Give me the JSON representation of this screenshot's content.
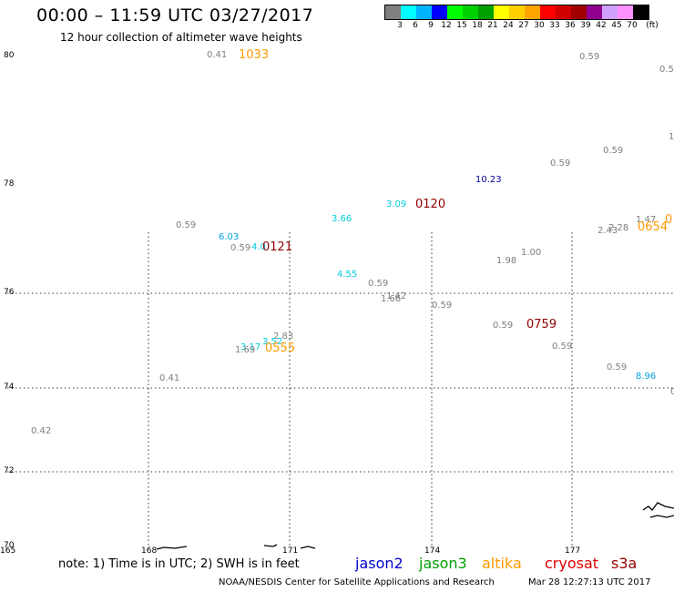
{
  "header": {
    "title": "00:00 – 11:59 UTC 03/27/2017",
    "subtitle": "12 hour collection of altimeter wave heights"
  },
  "colorbar": {
    "colors": [
      "#7f7f7f",
      "#00ffff",
      "#00b2ff",
      "#0000ff",
      "#00ff00",
      "#00d000",
      "#00a000",
      "#ffff00",
      "#ffd000",
      "#ffa500",
      "#ff0000",
      "#d00000",
      "#a00000",
      "#900090",
      "#d0a0ff",
      "#ff90ff",
      "#000000"
    ],
    "labels": [
      "3",
      "6",
      "9",
      "12",
      "15",
      "18",
      "21",
      "24",
      "27",
      "30",
      "33",
      "36",
      "39",
      "42",
      "45",
      "70",
      "(ft)"
    ]
  },
  "map": {
    "y_labels": [
      "80",
      "78",
      "76",
      "74",
      "72",
      "70"
    ],
    "x_labels": [
      "165",
      "168",
      "171",
      "174",
      "177"
    ],
    "readings": [
      {
        "text": "0.41",
        "color": "#7f7f7f",
        "kind": "val"
      },
      {
        "text": "1033",
        "color": "#ff9900",
        "kind": "time"
      },
      {
        "text": "0.59",
        "color": "#7f7f7f",
        "kind": "val"
      },
      {
        "text": "0.5",
        "color": "#7f7f7f",
        "kind": "val"
      },
      {
        "text": "1",
        "color": "#7f7f7f",
        "kind": "val"
      },
      {
        "text": "0.59",
        "color": "#7f7f7f",
        "kind": "val"
      },
      {
        "text": "0.59",
        "color": "#7f7f7f",
        "kind": "val"
      },
      {
        "text": "10.23",
        "color": "#0000a0",
        "kind": "val"
      },
      {
        "text": "3.09",
        "color": "#00ccdd",
        "kind": "val"
      },
      {
        "text": "0120",
        "color": "#900000",
        "kind": "time"
      },
      {
        "text": "3.66",
        "color": "#00ccdd",
        "kind": "val"
      },
      {
        "text": "0.59",
        "color": "#7f7f7f",
        "kind": "val"
      },
      {
        "text": "6.03",
        "color": "#00a0dd",
        "kind": "val"
      },
      {
        "text": "0.59",
        "color": "#7f7f7f",
        "kind": "val"
      },
      {
        "text": "4.0",
        "color": "#00ccdd",
        "kind": "val"
      },
      {
        "text": "0121",
        "color": "#900000",
        "kind": "time"
      },
      {
        "text": "1.47",
        "color": "#7f7f7f",
        "kind": "val"
      },
      {
        "text": "0",
        "color": "#ff9900",
        "kind": "time"
      },
      {
        "text": "2.28",
        "color": "#7f7f7f",
        "kind": "val"
      },
      {
        "text": "2.43",
        "color": "#7f7f7f",
        "kind": "val"
      },
      {
        "text": "0654",
        "color": "#ff9900",
        "kind": "time"
      },
      {
        "text": "1.00",
        "color": "#7f7f7f",
        "kind": "val"
      },
      {
        "text": "1.98",
        "color": "#7f7f7f",
        "kind": "val"
      },
      {
        "text": "4.55",
        "color": "#00ccdd",
        "kind": "val"
      },
      {
        "text": "0.59",
        "color": "#7f7f7f",
        "kind": "val"
      },
      {
        "text": "1.42",
        "color": "#7f7f7f",
        "kind": "val"
      },
      {
        "text": "1.66",
        "color": "#7f7f7f",
        "kind": "val"
      },
      {
        "text": "0.59",
        "color": "#7f7f7f",
        "kind": "val"
      },
      {
        "text": "0.59",
        "color": "#7f7f7f",
        "kind": "val"
      },
      {
        "text": "0759",
        "color": "#900000",
        "kind": "time"
      },
      {
        "text": "2.83",
        "color": "#7f7f7f",
        "kind": "val"
      },
      {
        "text": "3.52",
        "color": "#00ccdd",
        "kind": "val"
      },
      {
        "text": "3.17",
        "color": "#00ccdd",
        "kind": "val"
      },
      {
        "text": "1.69",
        "color": "#7f7f7f",
        "kind": "val"
      },
      {
        "text": "0555",
        "color": "#ff9900",
        "kind": "time"
      },
      {
        "text": "0.59",
        "color": "#7f7f7f",
        "kind": "val"
      },
      {
        "text": "0.41",
        "color": "#7f7f7f",
        "kind": "val"
      },
      {
        "text": "0.59",
        "color": "#7f7f7f",
        "kind": "val"
      },
      {
        "text": "8.96",
        "color": "#00a0dd",
        "kind": "val"
      },
      {
        "text": "0",
        "color": "#7f7f7f",
        "kind": "val"
      },
      {
        "text": "0.42",
        "color": "#7f7f7f",
        "kind": "val"
      }
    ]
  },
  "footer": {
    "note": "note: 1) Time is in UTC; 2) SWH is in feet",
    "satellites": [
      {
        "name": "jason2",
        "color": "#0000cc"
      },
      {
        "name": "jason3",
        "color": "#00a000"
      },
      {
        "name": "altika",
        "color": "#ff9900"
      },
      {
        "name": "cryosat",
        "color": "#dd0000"
      },
      {
        "name": "s3a",
        "color": "#990000"
      }
    ],
    "credit": "NOAA/NESDIS Center for Satellite Applications and Research",
    "timestamp": "Mar 28 12:27:13 UTC 2017"
  }
}
